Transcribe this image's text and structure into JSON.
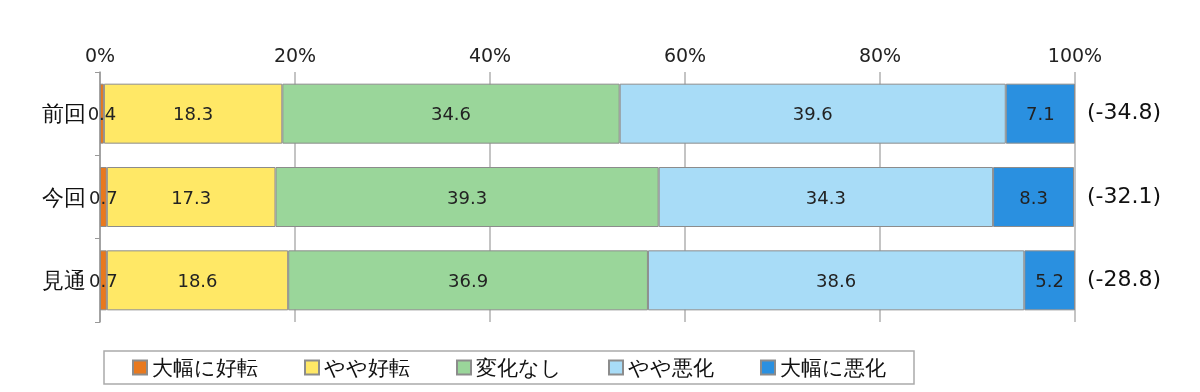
{
  "chart_data": {
    "type": "bar",
    "orientation": "horizontal",
    "stacked": true,
    "categories": [
      "前回",
      "今回",
      "見通"
    ],
    "series": [
      {
        "name": "大幅に好転",
        "color": "#e8791e",
        "values": [
          0.4,
          0.7,
          0.7
        ]
      },
      {
        "name": "やや好転",
        "color": "#ffe866",
        "values": [
          18.3,
          17.3,
          18.6
        ]
      },
      {
        "name": "変化なし",
        "color": "#9ad69a",
        "values": [
          34.6,
          39.3,
          36.9
        ]
      },
      {
        "name": "やや悪化",
        "color": "#a8dcf7",
        "values": [
          39.6,
          34.3,
          38.6
        ]
      },
      {
        "name": "大幅に悪化",
        "color": "#2a90e0",
        "values": [
          7.1,
          8.3,
          5.2
        ]
      }
    ],
    "xlim": [
      0,
      100
    ],
    "xticks": [
      {
        "value": 0,
        "label": "0%"
      },
      {
        "value": 20,
        "label": "20%"
      },
      {
        "value": 40,
        "label": "40%"
      },
      {
        "value": 60,
        "label": "60%"
      },
      {
        "value": 80,
        "label": "80%"
      },
      {
        "value": 100,
        "label": "100%"
      }
    ],
    "annotations": [
      "(-34.8)",
      "(-32.1)",
      "(-28.8)"
    ],
    "data_labels": true,
    "grid": "x",
    "legend": "bottom"
  }
}
